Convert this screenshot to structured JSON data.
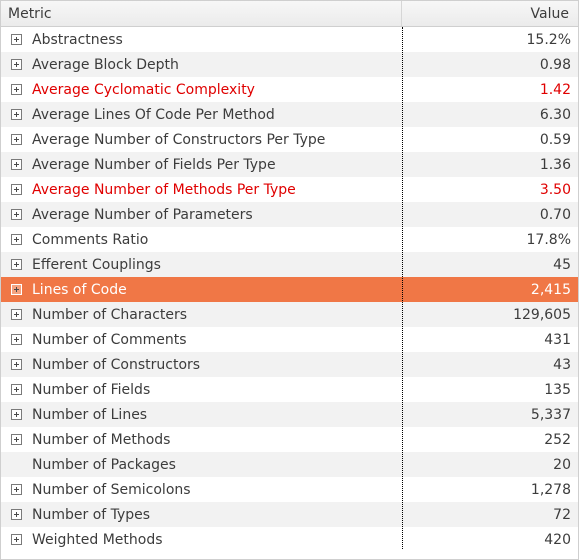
{
  "header": {
    "metric": "Metric",
    "value": "Value"
  },
  "rows": [
    {
      "label": "Abstractness",
      "value": "15.2%",
      "expandable": true,
      "red": false
    },
    {
      "label": "Average Block Depth",
      "value": "0.98",
      "expandable": true,
      "red": false
    },
    {
      "label": "Average Cyclomatic Complexity",
      "value": "1.42",
      "expandable": true,
      "red": true
    },
    {
      "label": "Average Lines Of Code Per Method",
      "value": "6.30",
      "expandable": true,
      "red": false
    },
    {
      "label": "Average Number of Constructors Per Type",
      "value": "0.59",
      "expandable": true,
      "red": false
    },
    {
      "label": "Average Number of Fields Per Type",
      "value": "1.36",
      "expandable": true,
      "red": false
    },
    {
      "label": "Average Number of Methods Per Type",
      "value": "3.50",
      "expandable": true,
      "red": true
    },
    {
      "label": "Average Number of Parameters",
      "value": "0.70",
      "expandable": true,
      "red": false
    },
    {
      "label": "Comments Ratio",
      "value": "17.8%",
      "expandable": true,
      "red": false
    },
    {
      "label": "Efferent Couplings",
      "value": "45",
      "expandable": true,
      "red": false
    },
    {
      "label": "Lines of Code",
      "value": "2,415",
      "expandable": true,
      "red": false,
      "selected": true
    },
    {
      "label": "Number of Characters",
      "value": "129,605",
      "expandable": true,
      "red": false
    },
    {
      "label": "Number of Comments",
      "value": "431",
      "expandable": true,
      "red": false
    },
    {
      "label": "Number of Constructors",
      "value": "43",
      "expandable": true,
      "red": false
    },
    {
      "label": "Number of Fields",
      "value": "135",
      "expandable": true,
      "red": false
    },
    {
      "label": "Number of Lines",
      "value": "5,337",
      "expandable": true,
      "red": false
    },
    {
      "label": "Number of Methods",
      "value": "252",
      "expandable": true,
      "red": false
    },
    {
      "label": "Number of Packages",
      "value": "20",
      "expandable": false,
      "red": false
    },
    {
      "label": "Number of Semicolons",
      "value": "1,278",
      "expandable": true,
      "red": false
    },
    {
      "label": "Number of Types",
      "value": "72",
      "expandable": true,
      "red": false
    },
    {
      "label": "Weighted Methods",
      "value": "420",
      "expandable": true,
      "red": false
    }
  ],
  "colors": {
    "selected_row": "#f07746",
    "warning_text": "#e00000",
    "alt_row": "#f2f2f2"
  },
  "icons": {
    "expander": "plus-box-icon"
  }
}
